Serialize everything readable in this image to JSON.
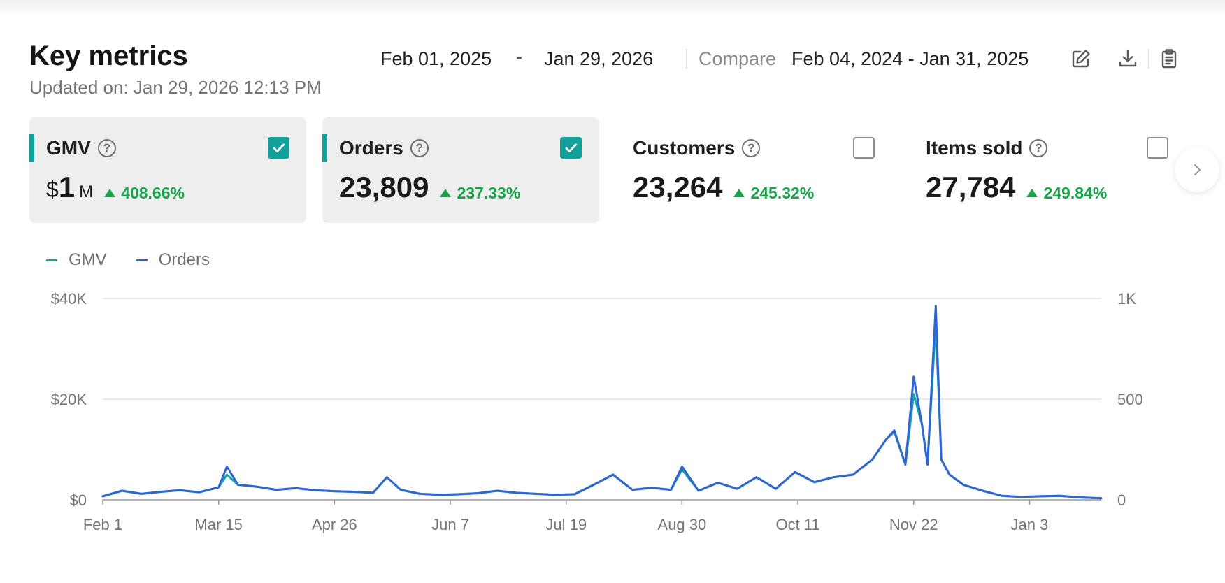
{
  "header": {
    "title": "Key metrics",
    "updated": "Updated on: Jan 29, 2026 12:13 PM",
    "date_start": "Feb 01, 2025",
    "date_sep": "-",
    "date_end": "Jan 29, 2026",
    "compare_label": "Compare",
    "compare_range": "Feb 04, 2024 - Jan 31, 2025",
    "icons": [
      "edit-icon",
      "download-icon",
      "clipboard-icon"
    ]
  },
  "metrics": [
    {
      "name": "GMV",
      "currency": "$",
      "value": "1",
      "unit": "M",
      "change": "408.66%",
      "selected": true
    },
    {
      "name": "Orders",
      "value": "23,809",
      "change": "237.33%",
      "selected": true
    },
    {
      "name": "Customers",
      "value": "23,264",
      "change": "245.32%",
      "selected": false
    },
    {
      "name": "Items sold",
      "value": "27,784",
      "change": "249.84%",
      "selected": false
    }
  ],
  "colors": {
    "gmv": "#14a89d",
    "orders": "#2f66d4",
    "accent": "#12a19a",
    "positive": "#16a34a"
  },
  "chart_data": {
    "type": "line",
    "x_ticks": [
      "Feb 1",
      "Mar 15",
      "Apr 26",
      "Jun 7",
      "Jul 19",
      "Aug 30",
      "Oct 11",
      "Nov 22",
      "Jan 3"
    ],
    "y_left_ticks": [
      "$0",
      "$20K",
      "$40K"
    ],
    "y_right_ticks": [
      "0",
      "500",
      "1K"
    ],
    "y_left_range": [
      0,
      40000
    ],
    "y_right_range": [
      0,
      1000
    ],
    "x_range": [
      "2025-02-01",
      "2026-01-29"
    ],
    "grid": true,
    "legend_position": "top-left",
    "series": [
      {
        "name": "GMV",
        "axis": "left",
        "points": [
          [
            "2025-02-01",
            700
          ],
          [
            "2025-02-08",
            1800
          ],
          [
            "2025-02-15",
            1200
          ],
          [
            "2025-02-22",
            1600
          ],
          [
            "2025-03-01",
            1900
          ],
          [
            "2025-03-08",
            1500
          ],
          [
            "2025-03-15",
            2500
          ],
          [
            "2025-03-18",
            5000
          ],
          [
            "2025-03-22",
            3000
          ],
          [
            "2025-03-29",
            2600
          ],
          [
            "2025-04-05",
            2000
          ],
          [
            "2025-04-12",
            2300
          ],
          [
            "2025-04-19",
            1900
          ],
          [
            "2025-04-26",
            1700
          ],
          [
            "2025-05-03",
            1600
          ],
          [
            "2025-05-10",
            1400
          ],
          [
            "2025-05-15",
            4500
          ],
          [
            "2025-05-20",
            2000
          ],
          [
            "2025-05-27",
            1200
          ],
          [
            "2025-06-03",
            1000
          ],
          [
            "2025-06-10",
            1100
          ],
          [
            "2025-06-17",
            1300
          ],
          [
            "2025-06-24",
            1800
          ],
          [
            "2025-07-01",
            1400
          ],
          [
            "2025-07-08",
            1200
          ],
          [
            "2025-07-15",
            1000
          ],
          [
            "2025-07-22",
            1100
          ],
          [
            "2025-07-29",
            3000
          ],
          [
            "2025-08-05",
            5000
          ],
          [
            "2025-08-12",
            2000
          ],
          [
            "2025-08-19",
            2400
          ],
          [
            "2025-08-26",
            2000
          ],
          [
            "2025-08-30",
            6000
          ],
          [
            "2025-09-05",
            1800
          ],
          [
            "2025-09-12",
            3400
          ],
          [
            "2025-09-19",
            2200
          ],
          [
            "2025-09-26",
            4500
          ],
          [
            "2025-10-03",
            2200
          ],
          [
            "2025-10-10",
            5500
          ],
          [
            "2025-10-17",
            3500
          ],
          [
            "2025-10-24",
            4500
          ],
          [
            "2025-10-31",
            5000
          ],
          [
            "2025-11-07",
            8000
          ],
          [
            "2025-11-12",
            12000
          ],
          [
            "2025-11-15",
            13500
          ],
          [
            "2025-11-19",
            7000
          ],
          [
            "2025-11-22",
            21000
          ],
          [
            "2025-11-25",
            15000
          ],
          [
            "2025-11-27",
            7000
          ],
          [
            "2025-11-30",
            35000
          ],
          [
            "2025-12-02",
            8000
          ],
          [
            "2025-12-05",
            5000
          ],
          [
            "2025-12-10",
            3000
          ],
          [
            "2025-12-17",
            1800
          ],
          [
            "2025-12-24",
            800
          ],
          [
            "2025-12-31",
            600
          ],
          [
            "2026-01-07",
            700
          ],
          [
            "2026-01-14",
            800
          ],
          [
            "2026-01-21",
            500
          ],
          [
            "2026-01-29",
            300
          ]
        ]
      },
      {
        "name": "Orders",
        "axis": "right",
        "points": [
          [
            "2025-02-01",
            18
          ],
          [
            "2025-02-08",
            45
          ],
          [
            "2025-02-15",
            30
          ],
          [
            "2025-02-22",
            40
          ],
          [
            "2025-03-01",
            48
          ],
          [
            "2025-03-08",
            38
          ],
          [
            "2025-03-15",
            62
          ],
          [
            "2025-03-18",
            165
          ],
          [
            "2025-03-22",
            75
          ],
          [
            "2025-03-29",
            65
          ],
          [
            "2025-04-05",
            50
          ],
          [
            "2025-04-12",
            58
          ],
          [
            "2025-04-19",
            48
          ],
          [
            "2025-04-26",
            43
          ],
          [
            "2025-05-03",
            40
          ],
          [
            "2025-05-10",
            35
          ],
          [
            "2025-05-15",
            112
          ],
          [
            "2025-05-20",
            50
          ],
          [
            "2025-05-27",
            30
          ],
          [
            "2025-06-03",
            25
          ],
          [
            "2025-06-10",
            28
          ],
          [
            "2025-06-17",
            33
          ],
          [
            "2025-06-24",
            45
          ],
          [
            "2025-07-01",
            35
          ],
          [
            "2025-07-08",
            30
          ],
          [
            "2025-07-15",
            25
          ],
          [
            "2025-07-22",
            28
          ],
          [
            "2025-07-29",
            75
          ],
          [
            "2025-08-05",
            125
          ],
          [
            "2025-08-12",
            50
          ],
          [
            "2025-08-19",
            60
          ],
          [
            "2025-08-26",
            50
          ],
          [
            "2025-08-30",
            165
          ],
          [
            "2025-09-05",
            45
          ],
          [
            "2025-09-12",
            85
          ],
          [
            "2025-09-19",
            55
          ],
          [
            "2025-09-26",
            112
          ],
          [
            "2025-10-03",
            55
          ],
          [
            "2025-10-10",
            138
          ],
          [
            "2025-10-17",
            88
          ],
          [
            "2025-10-24",
            112
          ],
          [
            "2025-10-31",
            125
          ],
          [
            "2025-11-07",
            200
          ],
          [
            "2025-11-12",
            300
          ],
          [
            "2025-11-15",
            345
          ],
          [
            "2025-11-19",
            175
          ],
          [
            "2025-11-22",
            612
          ],
          [
            "2025-11-25",
            375
          ],
          [
            "2025-11-27",
            175
          ],
          [
            "2025-11-30",
            962
          ],
          [
            "2025-12-02",
            200
          ],
          [
            "2025-12-05",
            125
          ],
          [
            "2025-12-10",
            75
          ],
          [
            "2025-12-17",
            45
          ],
          [
            "2025-12-24",
            20
          ],
          [
            "2025-12-31",
            15
          ],
          [
            "2026-01-07",
            18
          ],
          [
            "2026-01-14",
            20
          ],
          [
            "2026-01-21",
            12
          ],
          [
            "2026-01-29",
            8
          ]
        ]
      }
    ]
  }
}
